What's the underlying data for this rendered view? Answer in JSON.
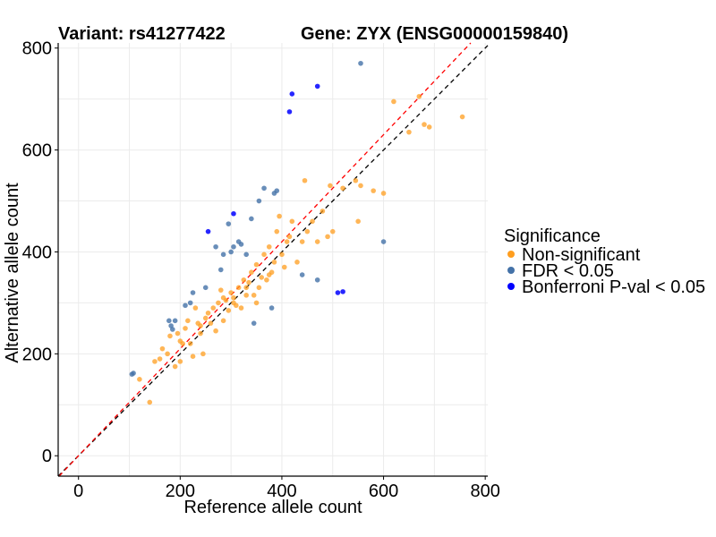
{
  "chart_data": {
    "type": "scatter",
    "title_left": "Variant: rs41277422",
    "title_right": "Gene: ZYX (ENSG00000159840)",
    "xlabel": "Reference allele count",
    "ylabel": "Alternative allele count",
    "xlim": [
      -40,
      805
    ],
    "ylim": [
      -40,
      810
    ],
    "xticks": [
      0,
      200,
      400,
      600,
      800
    ],
    "yticks": [
      0,
      200,
      400,
      600,
      800
    ],
    "grid": true,
    "legend": {
      "title": "Significance",
      "position": "right",
      "entries": [
        {
          "label": "Non-significant",
          "color": "#FF9E1F"
        },
        {
          "label": "FDR < 0.05",
          "color": "#4472A8"
        },
        {
          "label": "Bonferroni P-val < 0.05",
          "color": "#0000FF"
        }
      ]
    },
    "reference_lines": [
      {
        "name": "identity",
        "color": "#000000",
        "slope": 1.0,
        "intercept": 0,
        "dash": true
      },
      {
        "name": "fit",
        "color": "#FF0000",
        "slope": 1.05,
        "intercept": 0,
        "dash": true
      }
    ],
    "series": [
      {
        "name": "Non-significant",
        "color": "#FF9E1F",
        "points": [
          [
            120,
            150
          ],
          [
            140,
            105
          ],
          [
            150,
            185
          ],
          [
            165,
            210
          ],
          [
            175,
            200
          ],
          [
            180,
            235
          ],
          [
            190,
            175
          ],
          [
            195,
            240
          ],
          [
            200,
            185
          ],
          [
            205,
            220
          ],
          [
            210,
            250
          ],
          [
            215,
            265
          ],
          [
            220,
            220
          ],
          [
            225,
            195
          ],
          [
            230,
            290
          ],
          [
            235,
            260
          ],
          [
            240,
            255
          ],
          [
            245,
            200
          ],
          [
            250,
            270
          ],
          [
            255,
            280
          ],
          [
            260,
            260
          ],
          [
            265,
            290
          ],
          [
            270,
            245
          ],
          [
            275,
            300
          ],
          [
            280,
            325
          ],
          [
            285,
            265
          ],
          [
            290,
            305
          ],
          [
            295,
            285
          ],
          [
            300,
            320
          ],
          [
            305,
            310
          ],
          [
            310,
            295
          ],
          [
            315,
            330
          ],
          [
            320,
            290
          ],
          [
            325,
            345
          ],
          [
            330,
            315
          ],
          [
            335,
            340
          ],
          [
            340,
            360
          ],
          [
            345,
            315
          ],
          [
            350,
            375
          ],
          [
            355,
            330
          ],
          [
            360,
            350
          ],
          [
            365,
            395
          ],
          [
            370,
            345
          ],
          [
            375,
            410
          ],
          [
            380,
            360
          ],
          [
            385,
            380
          ],
          [
            390,
            440
          ],
          [
            395,
            470
          ],
          [
            400,
            395
          ],
          [
            405,
            370
          ],
          [
            410,
            420
          ],
          [
            415,
            430
          ],
          [
            420,
            460
          ],
          [
            430,
            380
          ],
          [
            440,
            420
          ],
          [
            445,
            540
          ],
          [
            450,
            440
          ],
          [
            460,
            460
          ],
          [
            470,
            420
          ],
          [
            480,
            480
          ],
          [
            490,
            430
          ],
          [
            495,
            530
          ],
          [
            500,
            440
          ],
          [
            520,
            525
          ],
          [
            545,
            540
          ],
          [
            550,
            460
          ],
          [
            555,
            530
          ],
          [
            580,
            520
          ],
          [
            600,
            515
          ],
          [
            620,
            695
          ],
          [
            650,
            635
          ],
          [
            670,
            705
          ],
          [
            680,
            650
          ],
          [
            690,
            645
          ],
          [
            755,
            665
          ],
          [
            160,
            190
          ],
          [
            200,
            225
          ],
          [
            240,
            240
          ],
          [
            285,
            310
          ],
          [
            305,
            300
          ],
          [
            330,
            330
          ],
          [
            350,
            300
          ],
          [
            375,
            355
          ]
        ]
      },
      {
        "name": "FDR < 0.05",
        "color": "#4472A8",
        "points": [
          [
            105,
            160
          ],
          [
            108,
            162
          ],
          [
            178,
            265
          ],
          [
            182,
            255
          ],
          [
            185,
            248
          ],
          [
            190,
            265
          ],
          [
            210,
            295
          ],
          [
            220,
            300
          ],
          [
            225,
            320
          ],
          [
            250,
            330
          ],
          [
            270,
            410
          ],
          [
            280,
            365
          ],
          [
            285,
            395
          ],
          [
            295,
            455
          ],
          [
            300,
            400
          ],
          [
            305,
            410
          ],
          [
            315,
            420
          ],
          [
            320,
            415
          ],
          [
            330,
            395
          ],
          [
            340,
            465
          ],
          [
            345,
            260
          ],
          [
            355,
            500
          ],
          [
            365,
            525
          ],
          [
            380,
            290
          ],
          [
            385,
            515
          ],
          [
            390,
            520
          ],
          [
            440,
            355
          ],
          [
            470,
            345
          ],
          [
            555,
            770
          ],
          [
            600,
            420
          ]
        ]
      },
      {
        "name": "Bonferroni P-val < 0.05",
        "color": "#0000FF",
        "points": [
          [
            255,
            440
          ],
          [
            305,
            475
          ],
          [
            415,
            675
          ],
          [
            420,
            710
          ],
          [
            470,
            725
          ],
          [
            510,
            320
          ],
          [
            520,
            322
          ]
        ]
      }
    ]
  }
}
